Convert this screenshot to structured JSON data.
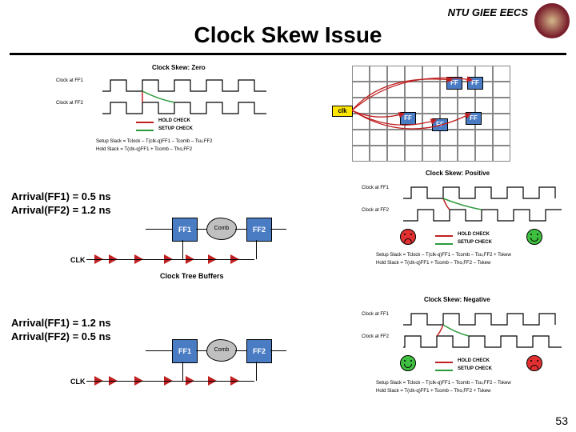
{
  "header": {
    "org": "NTU GIEE EECS"
  },
  "title": "Clock Skew Issue",
  "page_number": 53,
  "colors": {
    "hold_check": "#c02020",
    "setup_check": "#2a9a3a",
    "ff_fill": "#4a7cc4",
    "clk_fill": "#ffe600",
    "buffer_fill": "#c02020",
    "cloud_fill": "#c0c0c0",
    "happy_face": "#3fbf3f",
    "sad_face": "#e03030",
    "arrow_red": "#c02020",
    "grid_line": "#888888",
    "background": "#ffffff"
  },
  "panels": {
    "top_left": {
      "title": "Clock Skew: Zero",
      "rows": [
        "Clock at FF1",
        "Clock at FF2"
      ],
      "legend": [
        "HOLD CHECK",
        "SETUP CHECK"
      ],
      "formulas": [
        "Setup Slack = Tclock – T(clk-q)FF1 – Tcomb – Tsu,FF2",
        "Hold Slack = T(clk-q)FF1 + Tcomb – Tho,FF2"
      ]
    },
    "top_right": {
      "clk_label": "clk",
      "node_label": "FF",
      "grid_cols": 9,
      "grid_rows": 6
    },
    "mid_right": {
      "title": "Clock Skew: Positive",
      "rows": [
        "Clock at FF1",
        "Clock at FF2"
      ],
      "legend": [
        "HOLD CHECK",
        "SETUP CHECK"
      ],
      "formulas": [
        "Setup Slack = Tclock – T(clk-q)FF1 – Tcomb – Tsu,FF2 + Tskew",
        "Hold Slack = T(clk-q)FF1 + Tcomb – Tho,FF2 – Tskew"
      ],
      "hold_face": "sad",
      "setup_face": "happy"
    },
    "bot_right": {
      "title": "Clock Skew: Negative",
      "rows": [
        "Clock at FF1",
        "Clock at FF2"
      ],
      "legend": [
        "HOLD CHECK",
        "SETUP CHECK"
      ],
      "formulas": [
        "Setup Slack = Tclock – T(clk-q)FF1 – Tcomb – Tsu,FF2 – Tskew",
        "Hold Slack = T(clk-q)FF1 + Tcomb – Tho,FF2 + Tskew"
      ],
      "hold_face": "happy",
      "setup_face": "sad"
    },
    "mid_left": {
      "arrival": [
        "Arrival(FF1) = 0.5 ns",
        "Arrival(FF2) = 1.2 ns"
      ],
      "labels": {
        "ff1": "FF1",
        "ff2": "FF2",
        "comb": "Comb",
        "clk": "CLK",
        "buffers": "Clock Tree Buffers"
      }
    },
    "bot_left": {
      "arrival": [
        "Arrival(FF1) = 1.2 ns",
        "Arrival(FF2) = 0.5 ns"
      ],
      "labels": {
        "ff1": "FF1",
        "ff2": "FF2",
        "comb": "Comb",
        "clk": "CLK"
      }
    }
  }
}
